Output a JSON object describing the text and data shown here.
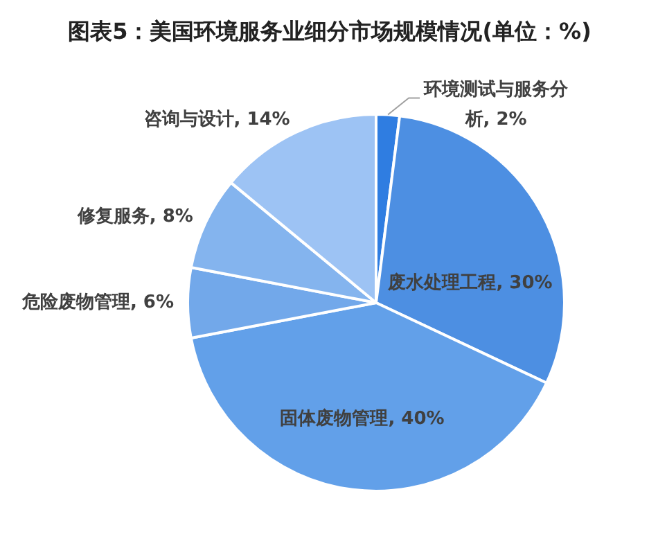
{
  "chart_data": {
    "type": "pie",
    "title": "图表5：美国环境服务业细分市场规模情况(单位：%)",
    "categories": [
      "环境测试与服务分析",
      "废水处理工程",
      "固体废物管理",
      "危险废物管理",
      "修复服务",
      "咨询与设计"
    ],
    "values": [
      2,
      30,
      40,
      6,
      8,
      14
    ],
    "colors": [
      "#2f7de1",
      "#4d8fe2",
      "#62a0e9",
      "#72a8ea",
      "#84b4ee",
      "#9dc3f4"
    ],
    "value_labels": [
      "2%",
      "30%",
      "40%",
      "6%",
      "8%",
      "14%"
    ]
  }
}
